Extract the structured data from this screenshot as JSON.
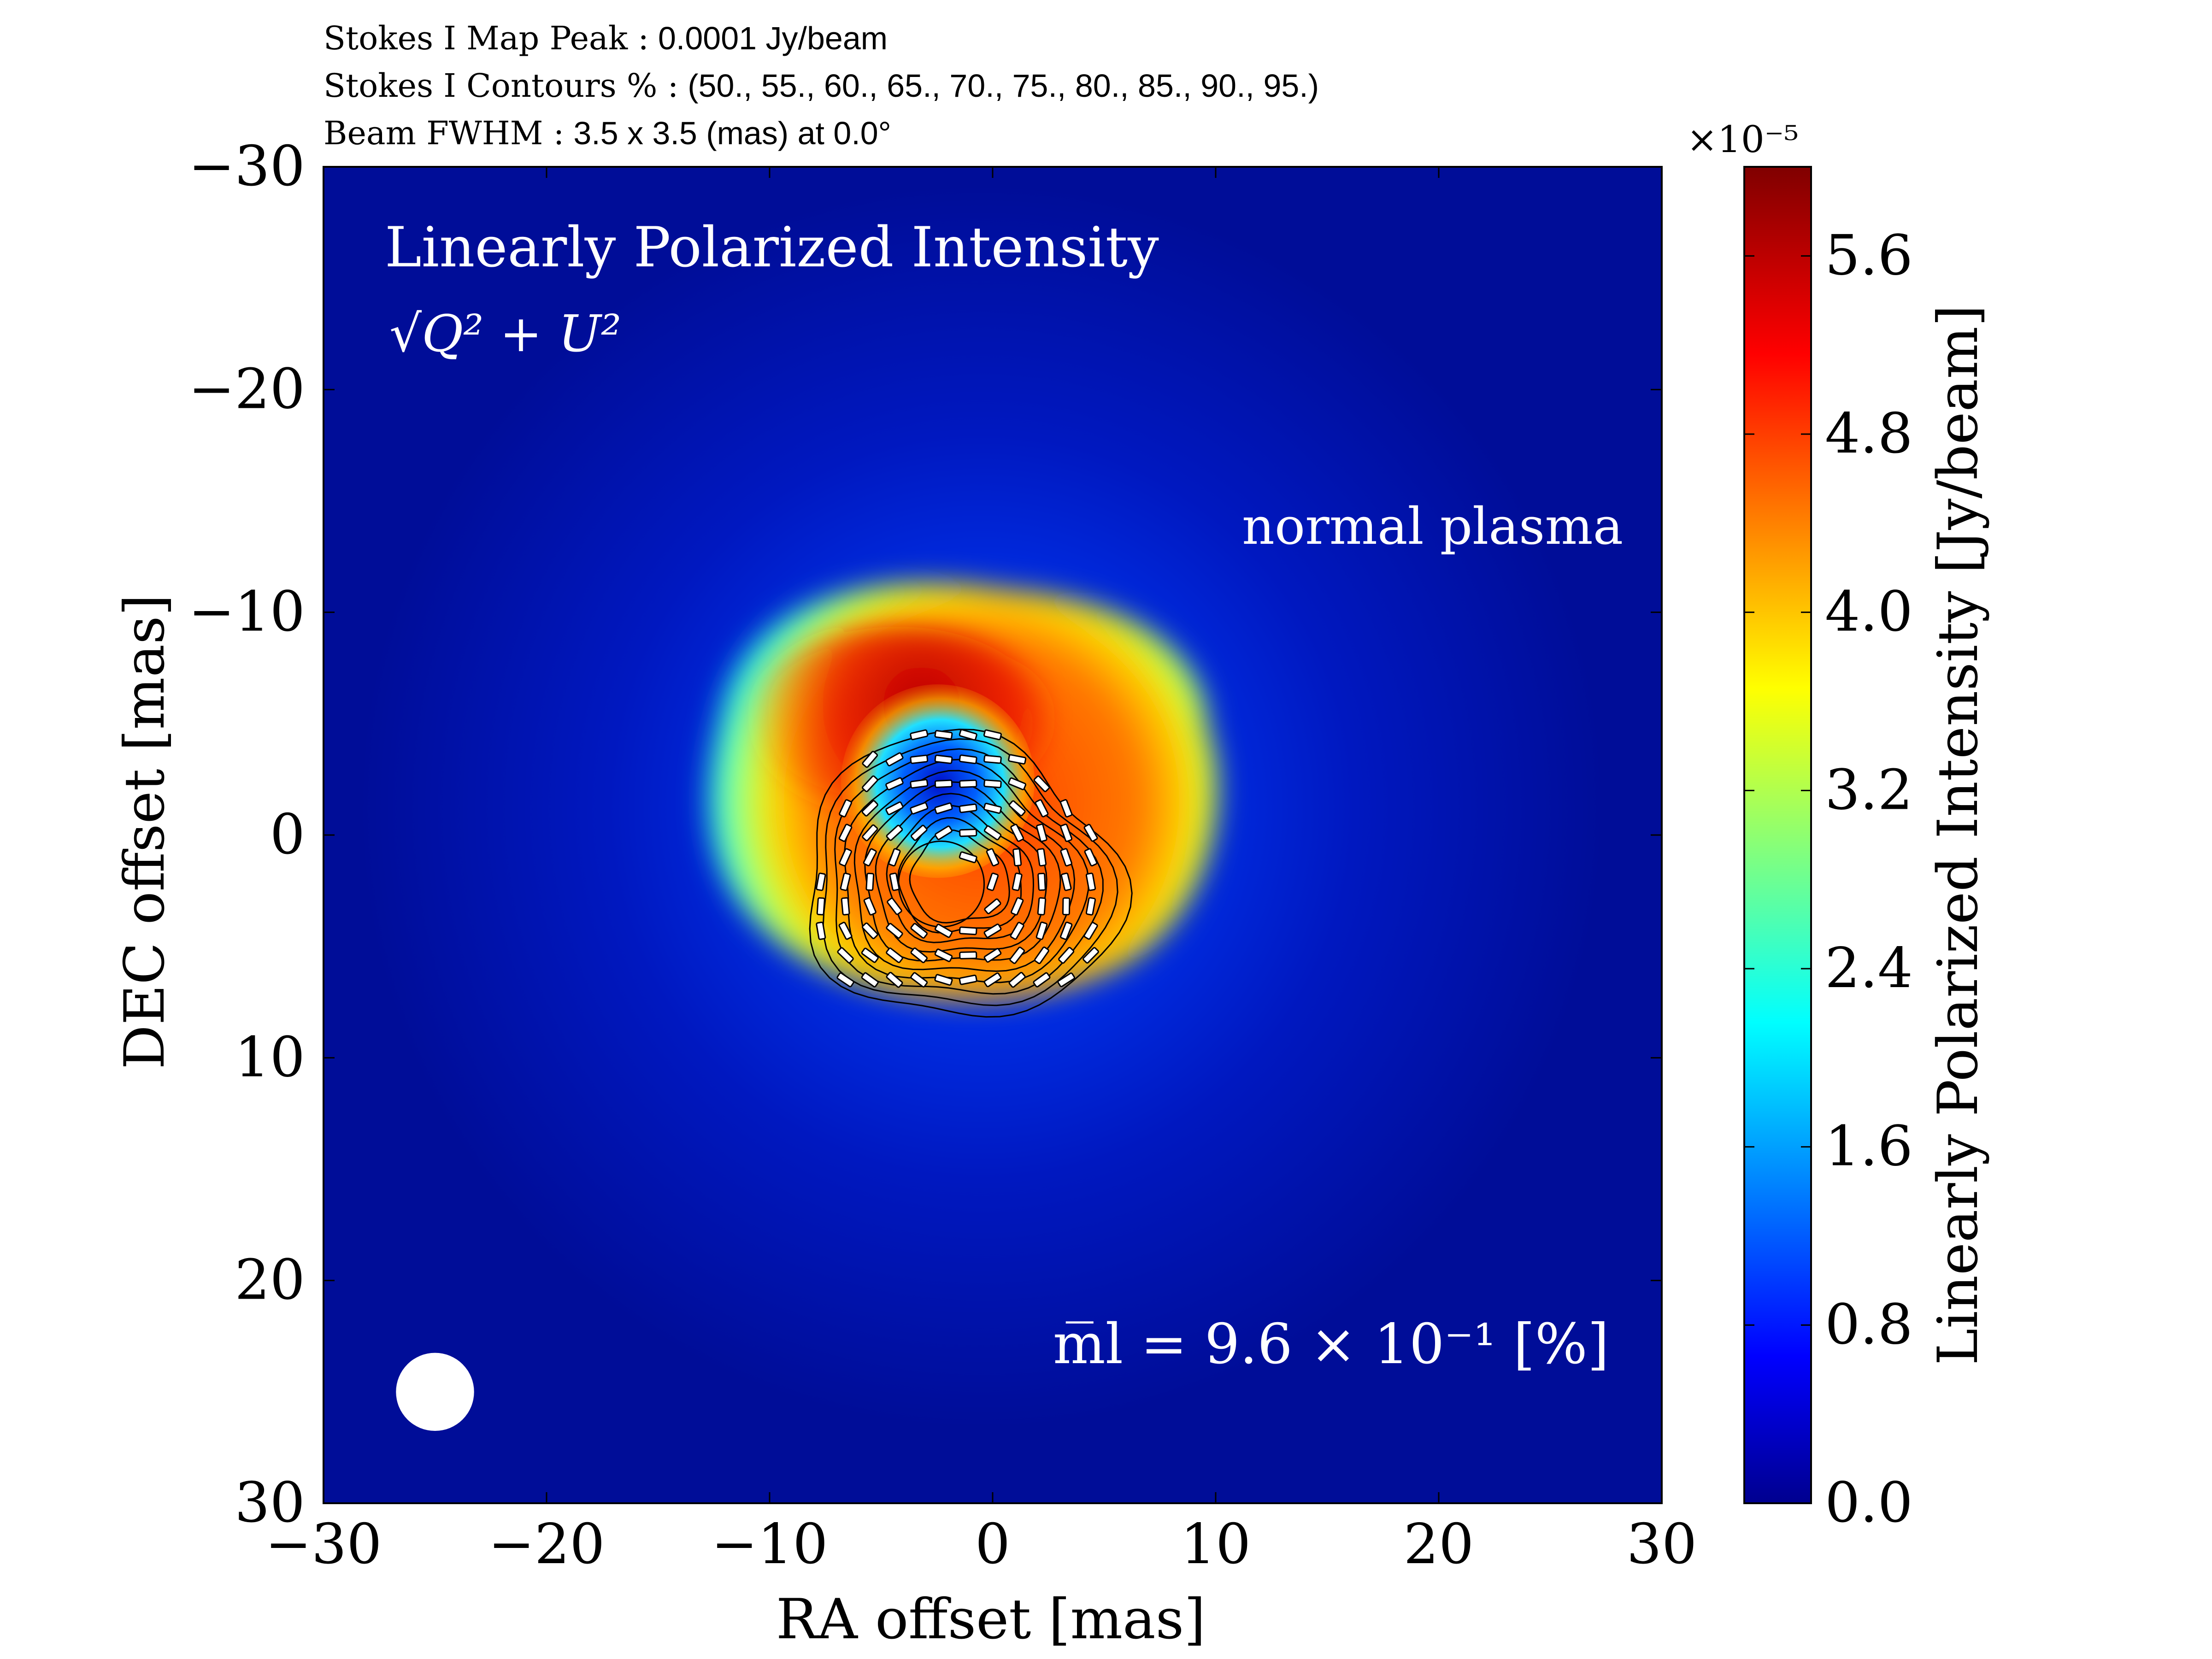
{
  "header": {
    "line1_label": "Stokes I Map Peak :",
    "line1_value": "0.0001 Jy/beam",
    "line2_label": "Stokes I Contours % :",
    "line2_value": "(50., 55., 60., 65., 70., 75., 80., 85., 90., 95.)",
    "line3_label": "Beam FWHM :",
    "line3_value": "3.5 x 3.5 (mas) at 0.0°"
  },
  "annotations": {
    "panel_title": "Linearly Polarized Intensity",
    "formula": "√Q² + U²",
    "plasma_label": "normal plasma",
    "mean_fraction": "m̅l = 9.6 × 10⁻¹ [%]"
  },
  "chart_data": {
    "type": "heatmap",
    "title": "Linearly Polarized Intensity",
    "xlabel": "RA offset [mas]",
    "ylabel": "DEC offset [mas]",
    "xlim": [
      -30,
      30
    ],
    "ylim": [
      -30,
      30
    ],
    "y_inverted": true,
    "x_ticks": [
      -30,
      -20,
      -10,
      0,
      10,
      20,
      30
    ],
    "y_ticks": [
      -30,
      -20,
      -10,
      0,
      10,
      20,
      30
    ],
    "x_tick_labels": [
      "−30",
      "−20",
      "−10",
      "0",
      "10",
      "20",
      "30"
    ],
    "y_tick_labels": [
      "−30",
      "−20",
      "−10",
      "0",
      "10",
      "20",
      "30"
    ],
    "colorbar": {
      "label": "Linearly Polarized Intensity [Jy/beam]",
      "scale_label": "×10⁻⁵",
      "min": 0.0,
      "max": 6.0,
      "ticks": [
        0.0,
        0.8,
        1.6,
        2.4,
        3.2,
        4.0,
        4.8,
        5.6
      ],
      "tick_labels": [
        "0.0",
        "0.8",
        "1.6",
        "2.4",
        "3.2",
        "4.0",
        "4.8",
        "5.6"
      ],
      "colormap": "jet"
    },
    "source": {
      "center": [
        -1.5,
        2.0
      ],
      "ring_radius": 6.5,
      "hole_center": [
        -2.3,
        2.2
      ],
      "hole_radius": 1.2,
      "peak_position": [
        -3.0,
        -3.5
      ],
      "peak_value": 6.0
    },
    "stokes_i_contour_levels_percent": [
      50,
      55,
      60,
      65,
      70,
      75,
      80,
      85,
      90,
      95
    ],
    "beam": {
      "fwhm_major_mas": 3.5,
      "fwhm_minor_mas": 3.5,
      "pa_deg": 0.0,
      "position": [
        -25,
        25
      ]
    },
    "evpa_vector_region": {
      "x_range": [
        -11,
        5
      ],
      "y_range": [
        -10,
        7
      ]
    }
  }
}
